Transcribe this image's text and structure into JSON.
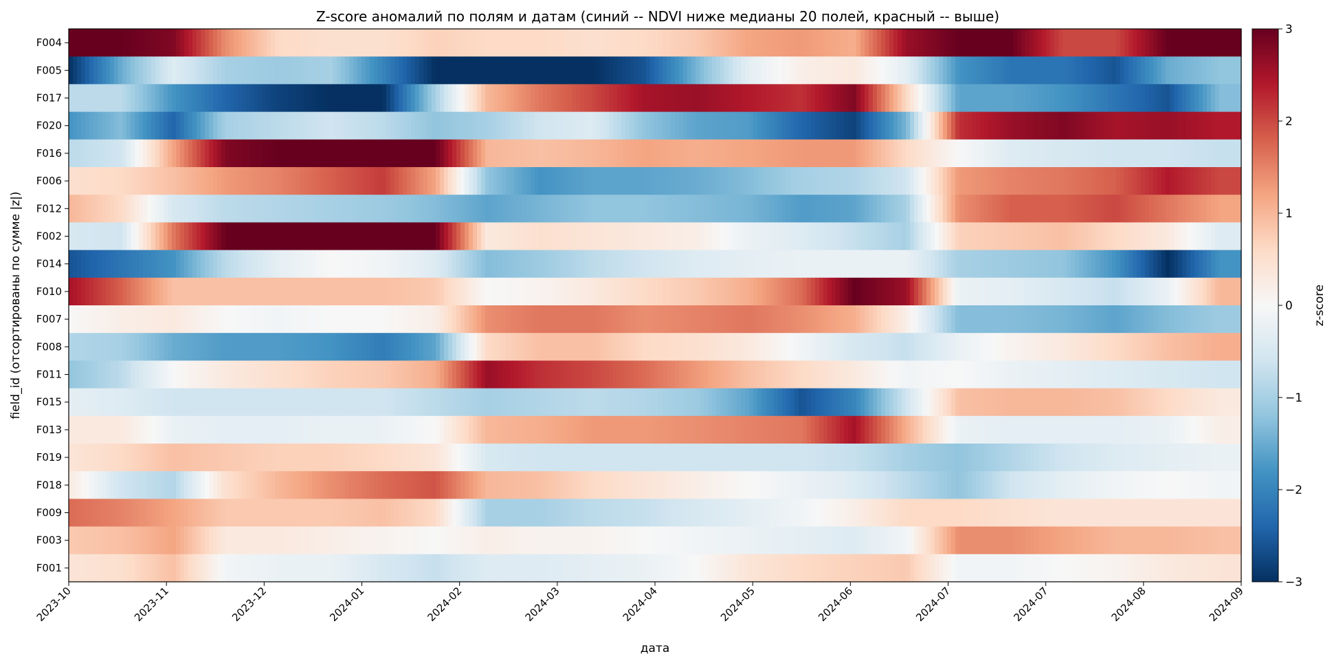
{
  "chart_data": {
    "type": "heatmap",
    "title": "Z-score аномалий по полям и датам (синий -- NDVI ниже медианы 20 полей, красный -- выше)",
    "xlabel": "дата",
    "ylabel": "field_id (отсортированы по сумме |z|)",
    "colorbar_label": "z-score",
    "colormap": "RdBu_r",
    "colormap_stops": [
      "#053061",
      "#2166ac",
      "#4393c3",
      "#92c5de",
      "#d1e5f0",
      "#f7f7f7",
      "#fddbc7",
      "#f4a582",
      "#d6604d",
      "#b2182b",
      "#67001f"
    ],
    "vmin": -3,
    "vmax": 3,
    "colorbar_ticks": [
      "3",
      "2",
      "1",
      "0",
      "−1",
      "−2",
      "−3"
    ],
    "xlim": [
      "2023-10-01",
      "2024-09-01"
    ],
    "x_tick_labels": [
      "2023-10",
      "2023-11",
      "2023-12",
      "2024-01",
      "2024-02",
      "2024-03",
      "2024-04",
      "2024-05",
      "2024-06",
      "2024-07",
      "2024-07",
      "2024-08",
      "2024-09"
    ],
    "rows": [
      "F004",
      "F005",
      "F017",
      "F020",
      "F016",
      "F006",
      "F012",
      "F002",
      "F014",
      "F010",
      "F007",
      "F008",
      "F011",
      "F015",
      "F013",
      "F019",
      "F018",
      "F009",
      "F003",
      "F001"
    ],
    "dates": [
      "2023-10-01",
      "2023-10-16",
      "2023-10-31",
      "2023-11-15",
      "2023-11-30",
      "2023-12-15",
      "2023-12-30",
      "2024-01-14",
      "2024-01-29",
      "2024-02-13",
      "2024-02-28",
      "2024-03-14",
      "2024-03-29",
      "2024-04-13",
      "2024-04-28",
      "2024-05-13",
      "2024-05-28",
      "2024-06-12",
      "2024-06-27",
      "2024-07-12",
      "2024-07-27",
      "2024-08-11",
      "2024-08-26"
    ],
    "z": [
      [
        3.0,
        3.0,
        2.8,
        1.4,
        0.6,
        0.5,
        0.5,
        0.7,
        0.6,
        0.6,
        0.5,
        0.6,
        0.8,
        1.2,
        1.3,
        1.1,
        2.6,
        3.0,
        3.0,
        2.0,
        2.0,
        3.0,
        3.0
      ],
      [
        -3.0,
        -1.5,
        -0.4,
        -1.0,
        -1.1,
        -1.0,
        -2.0,
        -3.0,
        -3.0,
        -3.0,
        -3.0,
        -2.6,
        -1.4,
        -0.3,
        0.2,
        0.3,
        -0.3,
        -1.8,
        -2.2,
        -2.2,
        -2.6,
        -1.5,
        -1.2
      ],
      [
        -0.8,
        -0.8,
        -1.8,
        -2.4,
        -2.8,
        -3.0,
        -3.0,
        -1.0,
        1.0,
        1.6,
        2.0,
        2.5,
        2.6,
        2.4,
        2.2,
        2.8,
        0.6,
        -1.6,
        -1.6,
        -1.8,
        -2.2,
        -2.6,
        -1.3
      ],
      [
        -1.8,
        -1.3,
        -2.4,
        -1.0,
        -0.8,
        -0.6,
        -0.8,
        -1.2,
        -1.0,
        -0.6,
        -0.4,
        -1.2,
        -1.6,
        -1.7,
        -2.4,
        -2.8,
        -1.4,
        2.2,
        2.6,
        2.8,
        2.5,
        2.6,
        2.4
      ],
      [
        -0.8,
        -0.6,
        1.2,
        2.8,
        3.0,
        3.0,
        3.0,
        3.0,
        1.0,
        0.9,
        1.0,
        1.2,
        1.1,
        1.2,
        1.3,
        1.3,
        0.6,
        0.0,
        -0.4,
        -0.5,
        -0.6,
        -0.6,
        -0.7
      ],
      [
        0.5,
        0.6,
        0.9,
        1.3,
        1.5,
        1.8,
        2.1,
        1.2,
        -1.2,
        -1.8,
        -1.6,
        -1.6,
        -1.5,
        -1.3,
        -1.0,
        -0.9,
        -0.6,
        1.3,
        1.5,
        1.6,
        1.8,
        2.4,
        2.0
      ],
      [
        1.0,
        0.6,
        -0.5,
        -0.8,
        -0.9,
        -1.0,
        -1.1,
        -1.3,
        -1.6,
        -1.4,
        -1.2,
        -1.2,
        -1.3,
        -1.4,
        -1.7,
        -1.6,
        -1.0,
        1.4,
        1.8,
        1.8,
        2.0,
        1.6,
        1.2
      ],
      [
        -0.5,
        -0.6,
        1.6,
        3.0,
        3.0,
        3.0,
        3.0,
        3.0,
        0.3,
        0.5,
        0.4,
        0.3,
        0.2,
        -0.2,
        -0.4,
        -0.7,
        -1.0,
        0.7,
        0.8,
        0.9,
        0.6,
        0.3,
        -0.4
      ],
      [
        -2.6,
        -2.2,
        -1.8,
        -0.8,
        -0.3,
        0.0,
        -0.1,
        -0.4,
        -1.3,
        -1.1,
        -0.8,
        -0.6,
        -0.4,
        -0.3,
        -0.2,
        -0.2,
        -0.2,
        -1.0,
        -1.1,
        -1.2,
        -1.8,
        -3.0,
        -1.8
      ],
      [
        2.5,
        1.8,
        0.9,
        0.9,
        0.9,
        0.9,
        0.9,
        0.8,
        0.0,
        0.1,
        0.3,
        0.6,
        0.8,
        1.1,
        1.7,
        3.0,
        2.6,
        -0.2,
        -0.3,
        -0.5,
        -0.7,
        -0.2,
        1.0
      ],
      [
        0.0,
        0.2,
        0.3,
        0.0,
        -0.1,
        0.0,
        0.0,
        0.2,
        1.4,
        1.6,
        1.6,
        1.4,
        1.5,
        1.6,
        1.4,
        1.1,
        0.2,
        -1.3,
        -1.3,
        -1.4,
        -1.6,
        -1.3,
        -1.1
      ],
      [
        -0.9,
        -1.0,
        -1.5,
        -1.7,
        -1.7,
        -1.8,
        -2.1,
        -1.6,
        0.6,
        0.9,
        0.9,
        0.6,
        0.5,
        0.3,
        -0.1,
        -0.5,
        -0.7,
        -0.2,
        0.1,
        0.3,
        0.6,
        0.9,
        1.1
      ],
      [
        -1.2,
        -0.8,
        0.0,
        0.3,
        0.5,
        0.7,
        0.8,
        1.1,
        2.6,
        2.2,
        2.0,
        1.7,
        1.3,
        0.9,
        0.6,
        0.3,
        -0.1,
        0.0,
        -0.2,
        -0.3,
        -0.4,
        -0.5,
        -0.6
      ],
      [
        -0.3,
        -0.4,
        -0.6,
        -0.6,
        -0.6,
        -0.6,
        -0.6,
        -0.8,
        -1.0,
        -0.9,
        -0.8,
        -0.9,
        -1.1,
        -1.6,
        -2.6,
        -2.0,
        -0.6,
        0.9,
        1.0,
        1.0,
        0.9,
        0.6,
        0.3
      ],
      [
        0.3,
        0.3,
        -0.2,
        -0.3,
        -0.3,
        -0.2,
        -0.2,
        0.0,
        1.0,
        1.1,
        1.3,
        1.3,
        1.4,
        1.5,
        1.6,
        2.5,
        1.1,
        -0.2,
        -0.3,
        -0.3,
        -0.3,
        -0.2,
        0.2
      ],
      [
        0.4,
        0.6,
        0.9,
        0.8,
        0.7,
        0.7,
        0.6,
        0.4,
        -0.5,
        -0.6,
        -0.6,
        -0.6,
        -0.6,
        -0.6,
        -0.6,
        -0.7,
        -1.0,
        -1.2,
        -0.9,
        -0.6,
        -0.4,
        -0.3,
        -0.2
      ],
      [
        0.3,
        -0.6,
        -0.9,
        0.5,
        1.0,
        1.4,
        1.7,
        1.9,
        1.0,
        0.9,
        0.6,
        0.4,
        0.2,
        0.0,
        -0.2,
        -0.4,
        -0.8,
        -1.2,
        -0.6,
        -0.3,
        -0.1,
        0.0,
        -0.1
      ],
      [
        1.7,
        1.5,
        1.2,
        0.8,
        0.8,
        0.8,
        0.9,
        0.6,
        -1.0,
        -1.0,
        -0.8,
        -0.7,
        -0.5,
        -0.3,
        -0.1,
        0.2,
        0.6,
        0.6,
        0.5,
        0.4,
        0.4,
        0.4,
        0.4
      ],
      [
        0.8,
        0.9,
        1.2,
        0.3,
        0.3,
        0.2,
        0.1,
        0.0,
        0.2,
        0.1,
        0.1,
        0.0,
        -0.1,
        -0.2,
        -0.3,
        -0.4,
        -0.1,
        1.4,
        1.4,
        1.2,
        1.0,
        1.0,
        0.9
      ],
      [
        0.4,
        0.5,
        0.9,
        -0.1,
        -0.2,
        -0.2,
        -0.5,
        -0.7,
        -0.4,
        -0.4,
        -0.3,
        -0.2,
        0.0,
        0.4,
        0.6,
        0.7,
        0.8,
        -0.1,
        -0.1,
        0.0,
        0.1,
        0.3,
        0.4
      ]
    ]
  }
}
